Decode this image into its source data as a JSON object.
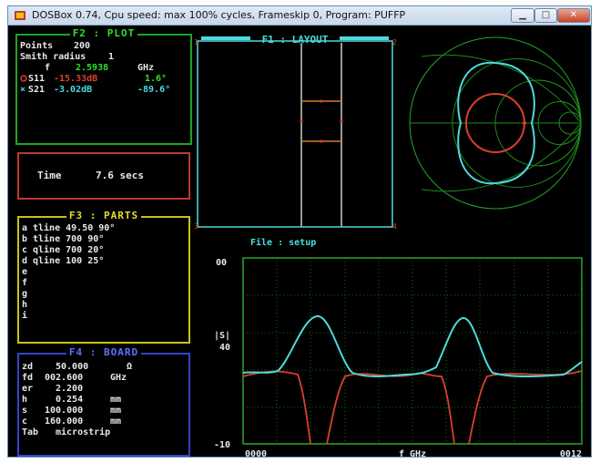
{
  "window": {
    "title": "DOSBox 0.74, Cpu speed: max 100% cycles, Frameskip  0, Program:    PUFFP",
    "min_icon": "minimize-icon",
    "max_icon": "maximize-icon",
    "close_icon": "close-icon"
  },
  "plot_panel": {
    "header": "F2 : PLOT",
    "points_label": "Points",
    "points_value": "200",
    "smith_label": "Smith radius",
    "smith_value": "1",
    "f_label": "f",
    "f_value": "2.5938",
    "f_unit": "GHz",
    "s11_label": "S11",
    "s11_mag": "-15.33dB",
    "s11_ang": "1.6°",
    "s21_label": "S21",
    "s21_mag": "-3.02dB",
    "s21_ang": "-89.6°"
  },
  "time_panel": {
    "label": "Time",
    "value": "7.6 secs"
  },
  "parts_panel": {
    "header": "F3 : PARTS",
    "items": [
      {
        "key": "a",
        "text": "tline 49.50 90°"
      },
      {
        "key": "b",
        "text": "tline 700 90°"
      },
      {
        "key": "c",
        "text": "qline 700 20°"
      },
      {
        "key": "d",
        "text": "qline 100 25°"
      },
      {
        "key": "e",
        "text": ""
      },
      {
        "key": "f",
        "text": ""
      },
      {
        "key": "g",
        "text": ""
      },
      {
        "key": "h",
        "text": ""
      },
      {
        "key": "i",
        "text": ""
      }
    ]
  },
  "board_panel": {
    "header": "F4 : BOARD",
    "rows": [
      {
        "key": "zd",
        "value": "50.000",
        "unit": "Ω"
      },
      {
        "key": "fd",
        "value": "002.600",
        "unit": "GHz"
      },
      {
        "key": "er",
        "value": "2.200",
        "unit": ""
      },
      {
        "key": "h",
        "value": "0.254",
        "unit": "mm"
      },
      {
        "key": "s",
        "value": "100.000",
        "unit": "mm"
      },
      {
        "key": "c",
        "value": "160.000",
        "unit": "mm"
      },
      {
        "key": "Tab",
        "value": "microstrip",
        "unit": ""
      }
    ]
  },
  "layout_panel": {
    "header": "F1 : LAYOUT",
    "port_labels": [
      "1",
      "2",
      "3",
      "4"
    ]
  },
  "file_label": "File : setup",
  "graph": {
    "y_top": "00",
    "y_mid": "40",
    "y_bottom": "-10",
    "y_label": "|S|",
    "x_left": "0000",
    "x_center": "f GHz",
    "x_right": "0012"
  },
  "colors": {
    "s11": "#d8402c",
    "s21": "#4fdada",
    "grid": "#1d8a1d"
  }
}
